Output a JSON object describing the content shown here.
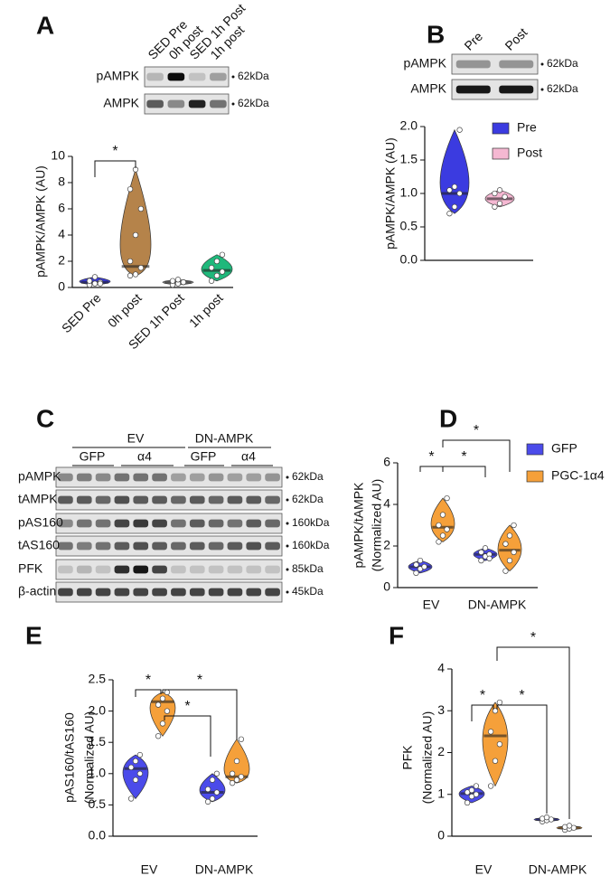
{
  "chart_data": [
    {
      "type": "violin",
      "label": "A",
      "ylabel": [
        "pAMPK/AMPK (AU)"
      ],
      "categories": [
        "SED Pre",
        "0h post",
        "SED 1h Post",
        "1h post"
      ],
      "series": [
        {
          "colors": [
            "#3b3be0",
            "#b5834a",
            "#a3a3a3",
            "#1fb87b"
          ],
          "points": [
            [
              0.2,
              0.3,
              0.4,
              0.5,
              0.8,
              0.3
            ],
            [
              0.9,
              1.0,
              1.5,
              2.0,
              4.0,
              6.0,
              7.5,
              9.0
            ],
            [
              0.2,
              0.3,
              0.4,
              0.5,
              0.6,
              0.4
            ],
            [
              0.5,
              0.9,
              1.2,
              1.5,
              2.0,
              2.5
            ]
          ],
          "medians": [
            0.4,
            1.6,
            0.4,
            1.3
          ]
        }
      ],
      "ylim": [
        0,
        10
      ],
      "yticks": [
        0,
        2,
        4,
        6,
        8,
        10
      ],
      "significance": [
        "*"
      ]
    },
    {
      "type": "violin",
      "label": "B",
      "ylabel": [
        "pAMPK/AMPK (AU)"
      ],
      "categories": [
        null
      ],
      "series": [
        {
          "name": "Pre",
          "color": "#3b3be0",
          "points": [
            [
              0.7,
              0.8,
              1.0,
              1.05,
              1.1,
              1.95
            ]
          ],
          "medians": [
            1.0
          ]
        },
        {
          "name": "Post",
          "color": "#f5b8d2",
          "points": [
            [
              0.8,
              0.85,
              0.95,
              1.0,
              1.05
            ]
          ],
          "medians": [
            0.92
          ]
        }
      ],
      "ylim": [
        0,
        2
      ],
      "yticks": [
        {
          "value": 0,
          "label": "0.0"
        },
        {
          "value": 0.5,
          "label": "0.5"
        },
        {
          "value": 1,
          "label": "1.0"
        },
        {
          "value": 1.5,
          "label": "1.5"
        },
        {
          "value": 2,
          "label": "2.0"
        }
      ],
      "legend": "right",
      "significance": []
    },
    {
      "type": "violin",
      "label": "D",
      "ylabel": [
        "pAMPK/tAMPK",
        "(Normalized AU)"
      ],
      "categories": [
        "EV",
        "DN-AMPK"
      ],
      "series": [
        {
          "name": "GFP",
          "color": "#4b4bea",
          "points": [
            [
              0.7,
              0.9,
              1.0,
              1.1,
              1.3,
              1.0
            ],
            [
              1.3,
              1.5,
              1.6,
              1.7,
              1.9,
              1.4
            ]
          ],
          "medians": [
            1.0,
            1.6
          ]
        },
        {
          "name": "PGC-1α4",
          "color": "#f5a03a",
          "points": [
            [
              2.2,
              2.5,
              2.8,
              3.0,
              3.5,
              4.3
            ],
            [
              0.8,
              1.3,
              1.7,
              2.1,
              2.5,
              3.0
            ]
          ],
          "medians": [
            2.9,
            1.8
          ]
        }
      ],
      "ylim": [
        0,
        6
      ],
      "yticks": [
        0,
        2,
        4,
        6
      ],
      "legend": "right",
      "significance": [
        "*",
        "*",
        "*"
      ]
    },
    {
      "type": "violin",
      "label": "E",
      "ylabel": [
        "pAS160/tAS160",
        "(Normalized AU)"
      ],
      "categories": [
        "EV",
        "DN-AMPK"
      ],
      "series": [
        {
          "color": "#4b4bea",
          "points": [
            [
              0.6,
              0.9,
              1.0,
              1.1,
              1.2,
              1.3
            ],
            [
              0.55,
              0.6,
              0.7,
              0.75,
              0.9,
              1.0
            ]
          ],
          "medians": [
            1.08,
            0.7
          ]
        },
        {
          "color": "#f5a03a",
          "points": [
            [
              1.6,
              1.8,
              2.0,
              2.1,
              2.2,
              2.3
            ],
            [
              0.85,
              0.9,
              0.95,
              1.0,
              1.2,
              1.55
            ]
          ],
          "medians": [
            2.15,
            0.95
          ]
        }
      ],
      "ylim": [
        0,
        2.5
      ],
      "yticks": [
        {
          "value": 0,
          "label": "0.0"
        },
        {
          "value": 0.5,
          "label": "0.5"
        },
        {
          "value": 1,
          "label": "1.0"
        },
        {
          "value": 1.5,
          "label": "1.5"
        },
        {
          "value": 2,
          "label": "2.0"
        },
        {
          "value": 2.5,
          "label": "2.5"
        }
      ],
      "significance": [
        "*",
        "*",
        "*"
      ]
    },
    {
      "type": "violin",
      "label": "F",
      "ylabel": [
        "PFK",
        "(Normalized AU)"
      ],
      "categories": [
        "EV",
        "DN-AMPK"
      ],
      "series": [
        {
          "color": "#4b4bea",
          "points": [
            [
              0.8,
              0.95,
              1.0,
              1.05,
              1.1,
              1.2
            ],
            [
              0.35,
              0.38,
              0.4,
              0.42,
              0.45
            ]
          ],
          "medians": [
            1.02,
            0.4
          ]
        },
        {
          "color": "#f5a03a",
          "points": [
            [
              1.2,
              1.8,
              2.2,
              2.5,
              3.0,
              3.2
            ],
            [
              0.15,
              0.18,
              0.2,
              0.22,
              0.25
            ]
          ],
          "medians": [
            2.4,
            0.2
          ]
        }
      ],
      "ylim": [
        0,
        4
      ],
      "yticks": [
        0,
        1,
        2,
        3,
        4
      ],
      "significance": [
        "*",
        "*",
        "*"
      ]
    }
  ],
  "blots": [
    {
      "lanes": [
        "SED Pre",
        "0h post",
        "SED 1h Post",
        "1h post"
      ],
      "rows": [
        "pAMPK",
        "AMPK"
      ],
      "sizes": [
        "62kDa",
        "62kDa"
      ]
    },
    {
      "lanes": [
        "Pre",
        "Post"
      ],
      "rows": [
        "pAMPK",
        "AMPK"
      ],
      "sizes": [
        "62kDa",
        "62kDa"
      ]
    },
    {
      "label": "C",
      "groups": [
        "EV",
        "DN-AMPK"
      ],
      "subgroups": [
        "GFP",
        "α4",
        "GFP",
        "α4"
      ],
      "rows": [
        "pAMPK",
        "tAMPK",
        "pAS160",
        "tAS160",
        "PFK",
        "β-actin"
      ],
      "sizes": [
        "62kDa",
        "62kDa",
        "160kDa",
        "160kDa",
        "85kDa",
        "45kDa"
      ]
    }
  ]
}
